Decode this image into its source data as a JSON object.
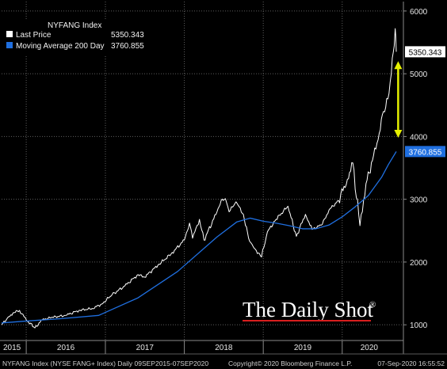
{
  "chart_data": {
    "type": "line",
    "legend": {
      "title": "NYFANG Index",
      "placement": "top-left",
      "entries": [
        {
          "label": "Last Price",
          "value": "5350.343",
          "color": "#ffffff"
        },
        {
          "label": "Moving Average 200 Day",
          "value": "3760.855",
          "color": "#1f6fe0"
        }
      ]
    },
    "y_axis": {
      "side": "right",
      "ticks": [
        "1000",
        "2000",
        "3000",
        "4000",
        "5000",
        "6000"
      ],
      "min": 750,
      "max": 6150
    },
    "x_axis": {
      "ticks": [
        "2015",
        "2016",
        "2017",
        "2018",
        "2019",
        "2020"
      ]
    },
    "grid": true,
    "series": [
      {
        "name": "Last Price",
        "color": "#ffffff",
        "points": [
          [
            "2015-09-09",
            1000
          ],
          [
            "2015-10-01",
            1080
          ],
          [
            "2015-11-01",
            1190
          ],
          [
            "2015-12-01",
            1230
          ],
          [
            "2016-01-01",
            1080
          ],
          [
            "2016-02-10",
            950
          ],
          [
            "2016-03-15",
            1080
          ],
          [
            "2016-05-01",
            1120
          ],
          [
            "2016-07-01",
            1150
          ],
          [
            "2016-09-01",
            1230
          ],
          [
            "2016-11-01",
            1260
          ],
          [
            "2016-12-15",
            1330
          ],
          [
            "2017-02-01",
            1480
          ],
          [
            "2017-04-01",
            1620
          ],
          [
            "2017-06-01",
            1800
          ],
          [
            "2017-07-01",
            1760
          ],
          [
            "2017-09-01",
            1950
          ],
          [
            "2017-11-01",
            2130
          ],
          [
            "2018-01-01",
            2350
          ],
          [
            "2018-01-25",
            2620
          ],
          [
            "2018-02-08",
            2380
          ],
          [
            "2018-03-12",
            2680
          ],
          [
            "2018-04-02",
            2350
          ],
          [
            "2018-06-01",
            2800
          ],
          [
            "2018-06-20",
            2980
          ],
          [
            "2018-07-10",
            3010
          ],
          [
            "2018-07-27",
            2800
          ],
          [
            "2018-08-28",
            2960
          ],
          [
            "2018-10-01",
            2760
          ],
          [
            "2018-10-25",
            2380
          ],
          [
            "2018-11-20",
            2220
          ],
          [
            "2018-12-24",
            2080
          ],
          [
            "2019-01-20",
            2480
          ],
          [
            "2019-03-01",
            2680
          ],
          [
            "2019-04-25",
            2890
          ],
          [
            "2019-06-03",
            2410
          ],
          [
            "2019-07-15",
            2760
          ],
          [
            "2019-08-15",
            2520
          ],
          [
            "2019-10-01",
            2600
          ],
          [
            "2019-11-01",
            2830
          ],
          [
            "2019-12-15",
            2980
          ],
          [
            "2020-01-25",
            3320
          ],
          [
            "2020-02-19",
            3580
          ],
          [
            "2020-03-23",
            2580
          ],
          [
            "2020-04-20",
            3250
          ],
          [
            "2020-05-20",
            3620
          ],
          [
            "2020-06-15",
            3950
          ],
          [
            "2020-07-10",
            4400
          ],
          [
            "2020-07-30",
            4600
          ],
          [
            "2020-08-15",
            5000
          ],
          [
            "2020-09-02",
            5720
          ],
          [
            "2020-09-07",
            5350.343
          ]
        ]
      },
      {
        "name": "Moving Average 200 Day",
        "color": "#1f6fe0",
        "points": [
          [
            "2015-09-09",
            1030
          ],
          [
            "2016-01-01",
            1060
          ],
          [
            "2016-06-01",
            1095
          ],
          [
            "2016-12-01",
            1150
          ],
          [
            "2017-06-01",
            1430
          ],
          [
            "2017-12-01",
            1850
          ],
          [
            "2018-06-01",
            2400
          ],
          [
            "2018-09-01",
            2640
          ],
          [
            "2018-11-01",
            2700
          ],
          [
            "2019-01-01",
            2650
          ],
          [
            "2019-03-01",
            2620
          ],
          [
            "2019-05-01",
            2580
          ],
          [
            "2019-07-01",
            2530
          ],
          [
            "2019-09-01",
            2530
          ],
          [
            "2019-11-01",
            2590
          ],
          [
            "2020-01-01",
            2720
          ],
          [
            "2020-03-01",
            2880
          ],
          [
            "2020-05-01",
            3060
          ],
          [
            "2020-07-01",
            3350
          ],
          [
            "2020-08-01",
            3550
          ],
          [
            "2020-09-07",
            3760.855
          ]
        ]
      }
    ],
    "last_value_tags": [
      {
        "series": "Last Price",
        "text": "5350.343",
        "y": 5350.343,
        "bg": "#ffffff",
        "fg": "#000000"
      },
      {
        "series": "Moving Average 200 Day",
        "text": "3760.855",
        "y": 3760.855,
        "bg": "#1f6fe0",
        "fg": "#ffffff"
      }
    ],
    "annotation": {
      "type": "double-arrow",
      "color": "#e6f000",
      "x": "2020-09-01",
      "from": 5200,
      "to": 3980
    }
  },
  "watermark": {
    "text": "The Daily Shot",
    "mark": "®",
    "underline_color": "#d81e1e"
  },
  "footer": {
    "left": "NYFANG Index (NYSE FANG+ Index)  Daily 09SEP2015-07SEP2020",
    "center": "Copyright© 2020 Bloomberg Finance L.P.",
    "right": "07-Sep-2020 16:55:52"
  }
}
